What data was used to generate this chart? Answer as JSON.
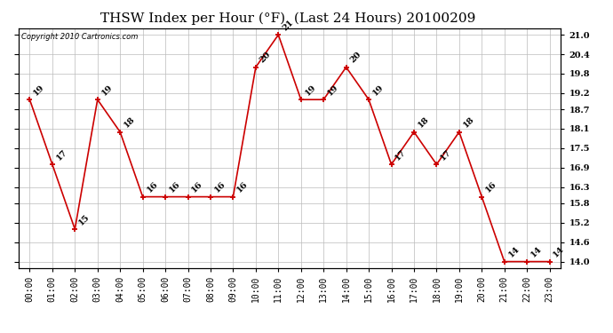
{
  "title": "THSW Index per Hour (°F)  (Last 24 Hours) 20100209",
  "copyright": "Copyright 2010 Cartronics.com",
  "hours": [
    "00:00",
    "01:00",
    "02:00",
    "03:00",
    "04:00",
    "05:00",
    "06:00",
    "07:00",
    "08:00",
    "09:00",
    "10:00",
    "11:00",
    "12:00",
    "13:00",
    "14:00",
    "15:00",
    "16:00",
    "17:00",
    "18:00",
    "19:00",
    "20:00",
    "21:00",
    "22:00",
    "23:00"
  ],
  "values": [
    19,
    17,
    15,
    19,
    18,
    16,
    16,
    16,
    16,
    16,
    20,
    21,
    19,
    19,
    20,
    19,
    17,
    18,
    17,
    18,
    16,
    14,
    14,
    14
  ],
  "ylim_min": 13.8,
  "ylim_max": 21.2,
  "yticks": [
    14.0,
    14.6,
    15.2,
    15.8,
    16.3,
    16.9,
    17.5,
    18.1,
    18.7,
    19.2,
    19.8,
    20.4,
    21.0
  ],
  "line_color": "#cc0000",
  "marker_color": "#cc0000",
  "bg_color": "#ffffff",
  "grid_color": "#bbbbbb",
  "title_fontsize": 11,
  "annotation_fontsize": 7,
  "tick_fontsize": 7,
  "copyright_fontsize": 6
}
